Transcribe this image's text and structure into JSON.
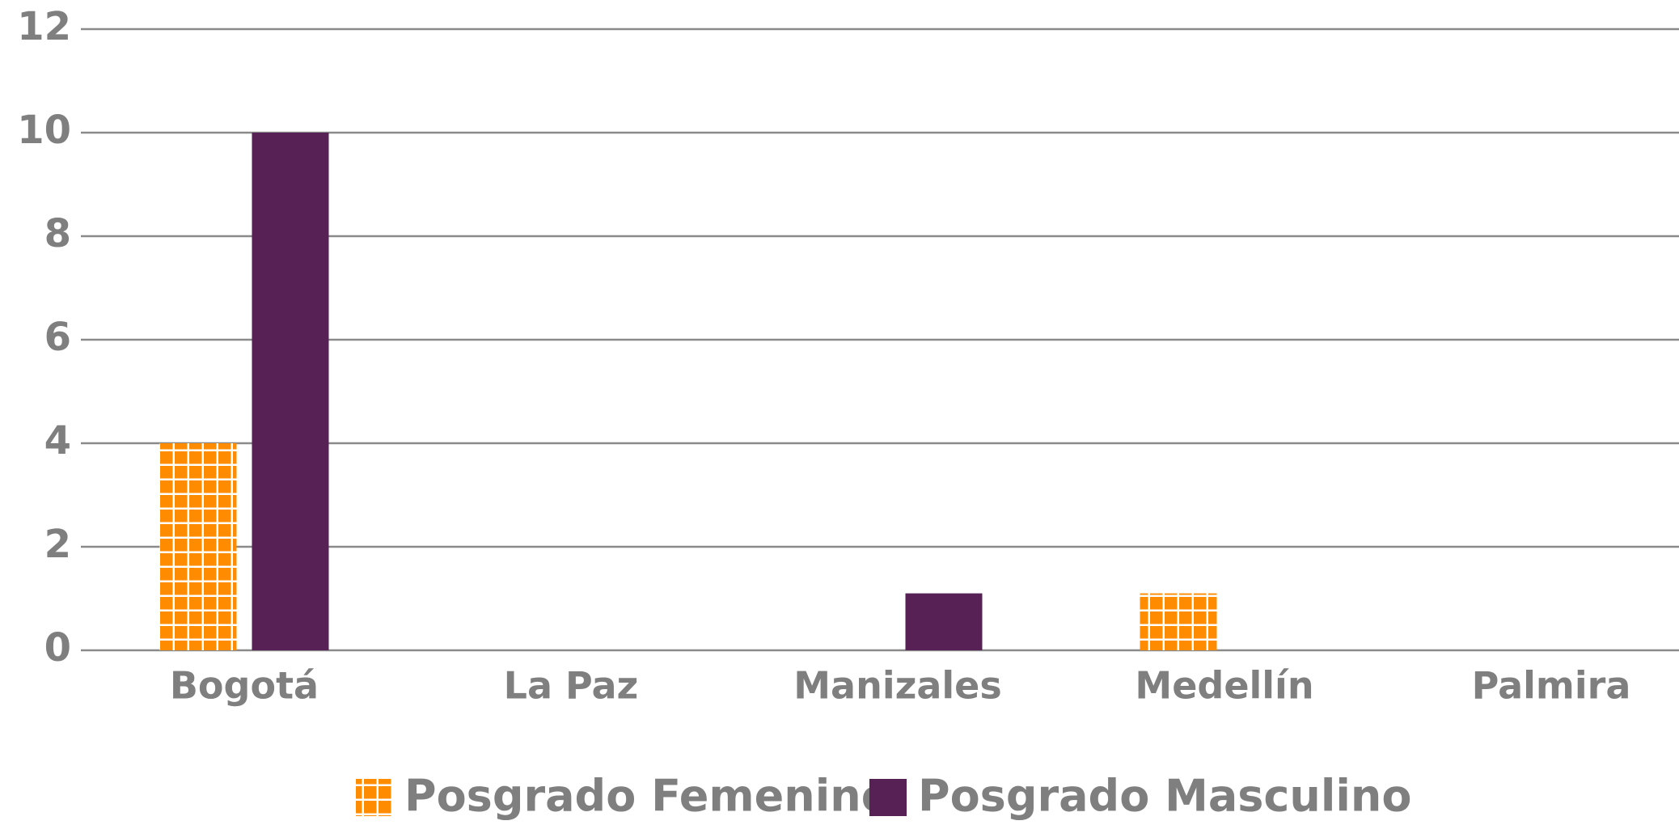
{
  "chart_data": {
    "type": "bar",
    "categories": [
      "Bogotá",
      "La Paz",
      "Manizales",
      "Medellín",
      "Palmira"
    ],
    "series": [
      {
        "name": "Posgrado Femenino",
        "color": "#ff8c00",
        "pattern": "grid",
        "values": [
          4,
          0,
          0,
          1.1,
          0
        ]
      },
      {
        "name": "Posgrado Masculino",
        "color": "#582156",
        "values": [
          10,
          0,
          1.1,
          0,
          0
        ]
      }
    ],
    "ylim": [
      0,
      12
    ],
    "yticks": [
      0,
      2,
      4,
      6,
      8,
      10,
      12
    ],
    "grid": true,
    "legend": "bottom"
  }
}
